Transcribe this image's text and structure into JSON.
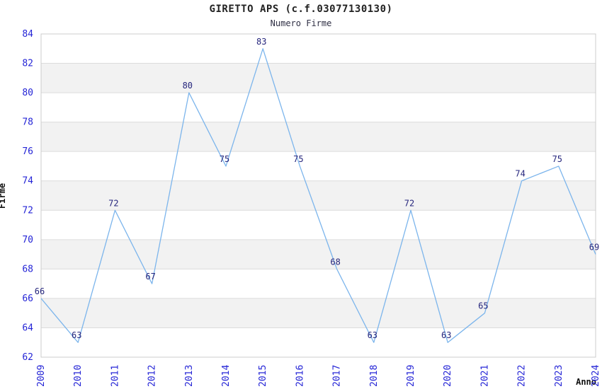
{
  "chart": {
    "title": "GIRETTO APS (c.f.03077130130)",
    "subtitle": "Numero Firme",
    "ylabel": "Firme",
    "xlabel": "Anno"
  },
  "chart_data": {
    "type": "line",
    "title": "GIRETTO APS (c.f.03077130130)",
    "subtitle": "Numero Firme",
    "xlabel": "Anno",
    "ylabel": "Firme",
    "categories": [
      "2009",
      "2010",
      "2011",
      "2012",
      "2013",
      "2014",
      "2015",
      "2016",
      "2017",
      "2018",
      "2019",
      "2020",
      "2021",
      "2022",
      "2023",
      "2024"
    ],
    "values": [
      66,
      63,
      72,
      67,
      80,
      75,
      83,
      75,
      68,
      63,
      72,
      63,
      65,
      74,
      75,
      69
    ],
    "ylim": [
      62,
      84
    ],
    "ytick_step": 2,
    "grid": true,
    "legend": false,
    "data_labels": true,
    "colors": {
      "line": "#7cb5ec",
      "tick_label": "#2424d6",
      "data_label": "#26267d",
      "band_gray": "#f2f2f2",
      "grid_line": "#dcdcdc",
      "plot_border": "#cccccc",
      "plot_background": "#ffffff"
    }
  }
}
